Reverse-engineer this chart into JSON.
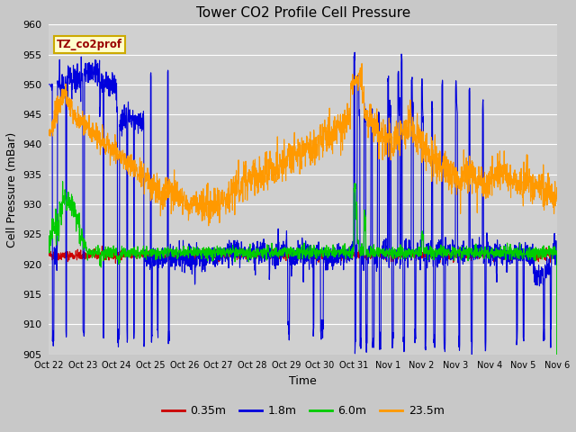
{
  "title": "Tower CO2 Profile Cell Pressure",
  "xlabel": "Time",
  "ylabel": "Cell Pressure (mBar)",
  "ylim": [
    905,
    960
  ],
  "yticks": [
    905,
    910,
    915,
    920,
    925,
    930,
    935,
    940,
    945,
    950,
    955,
    960
  ],
  "fig_bg_color": "#c8c8c8",
  "plot_bg_color": "#d0d0d0",
  "legend_label": "TZ_co2prof",
  "legend_text_color": "#990000",
  "legend_box_facecolor": "#ffffcc",
  "legend_box_edgecolor": "#ccaa00",
  "series_labels": [
    "0.35m",
    "1.8m",
    "6.0m",
    "23.5m"
  ],
  "series_colors": [
    "#cc0000",
    "#0000dd",
    "#00cc00",
    "#ff9900"
  ],
  "x_tick_labels": [
    "Oct 22",
    "Oct 23",
    "Oct 24",
    "Oct 25",
    "Oct 26",
    "Oct 27",
    "Oct 28",
    "Oct 29",
    "Oct 30",
    "Oct 31",
    "Nov 1",
    "Nov 2",
    "Nov 3",
    "Nov 4",
    "Nov 5",
    "Nov 6"
  ],
  "num_points": 2000
}
